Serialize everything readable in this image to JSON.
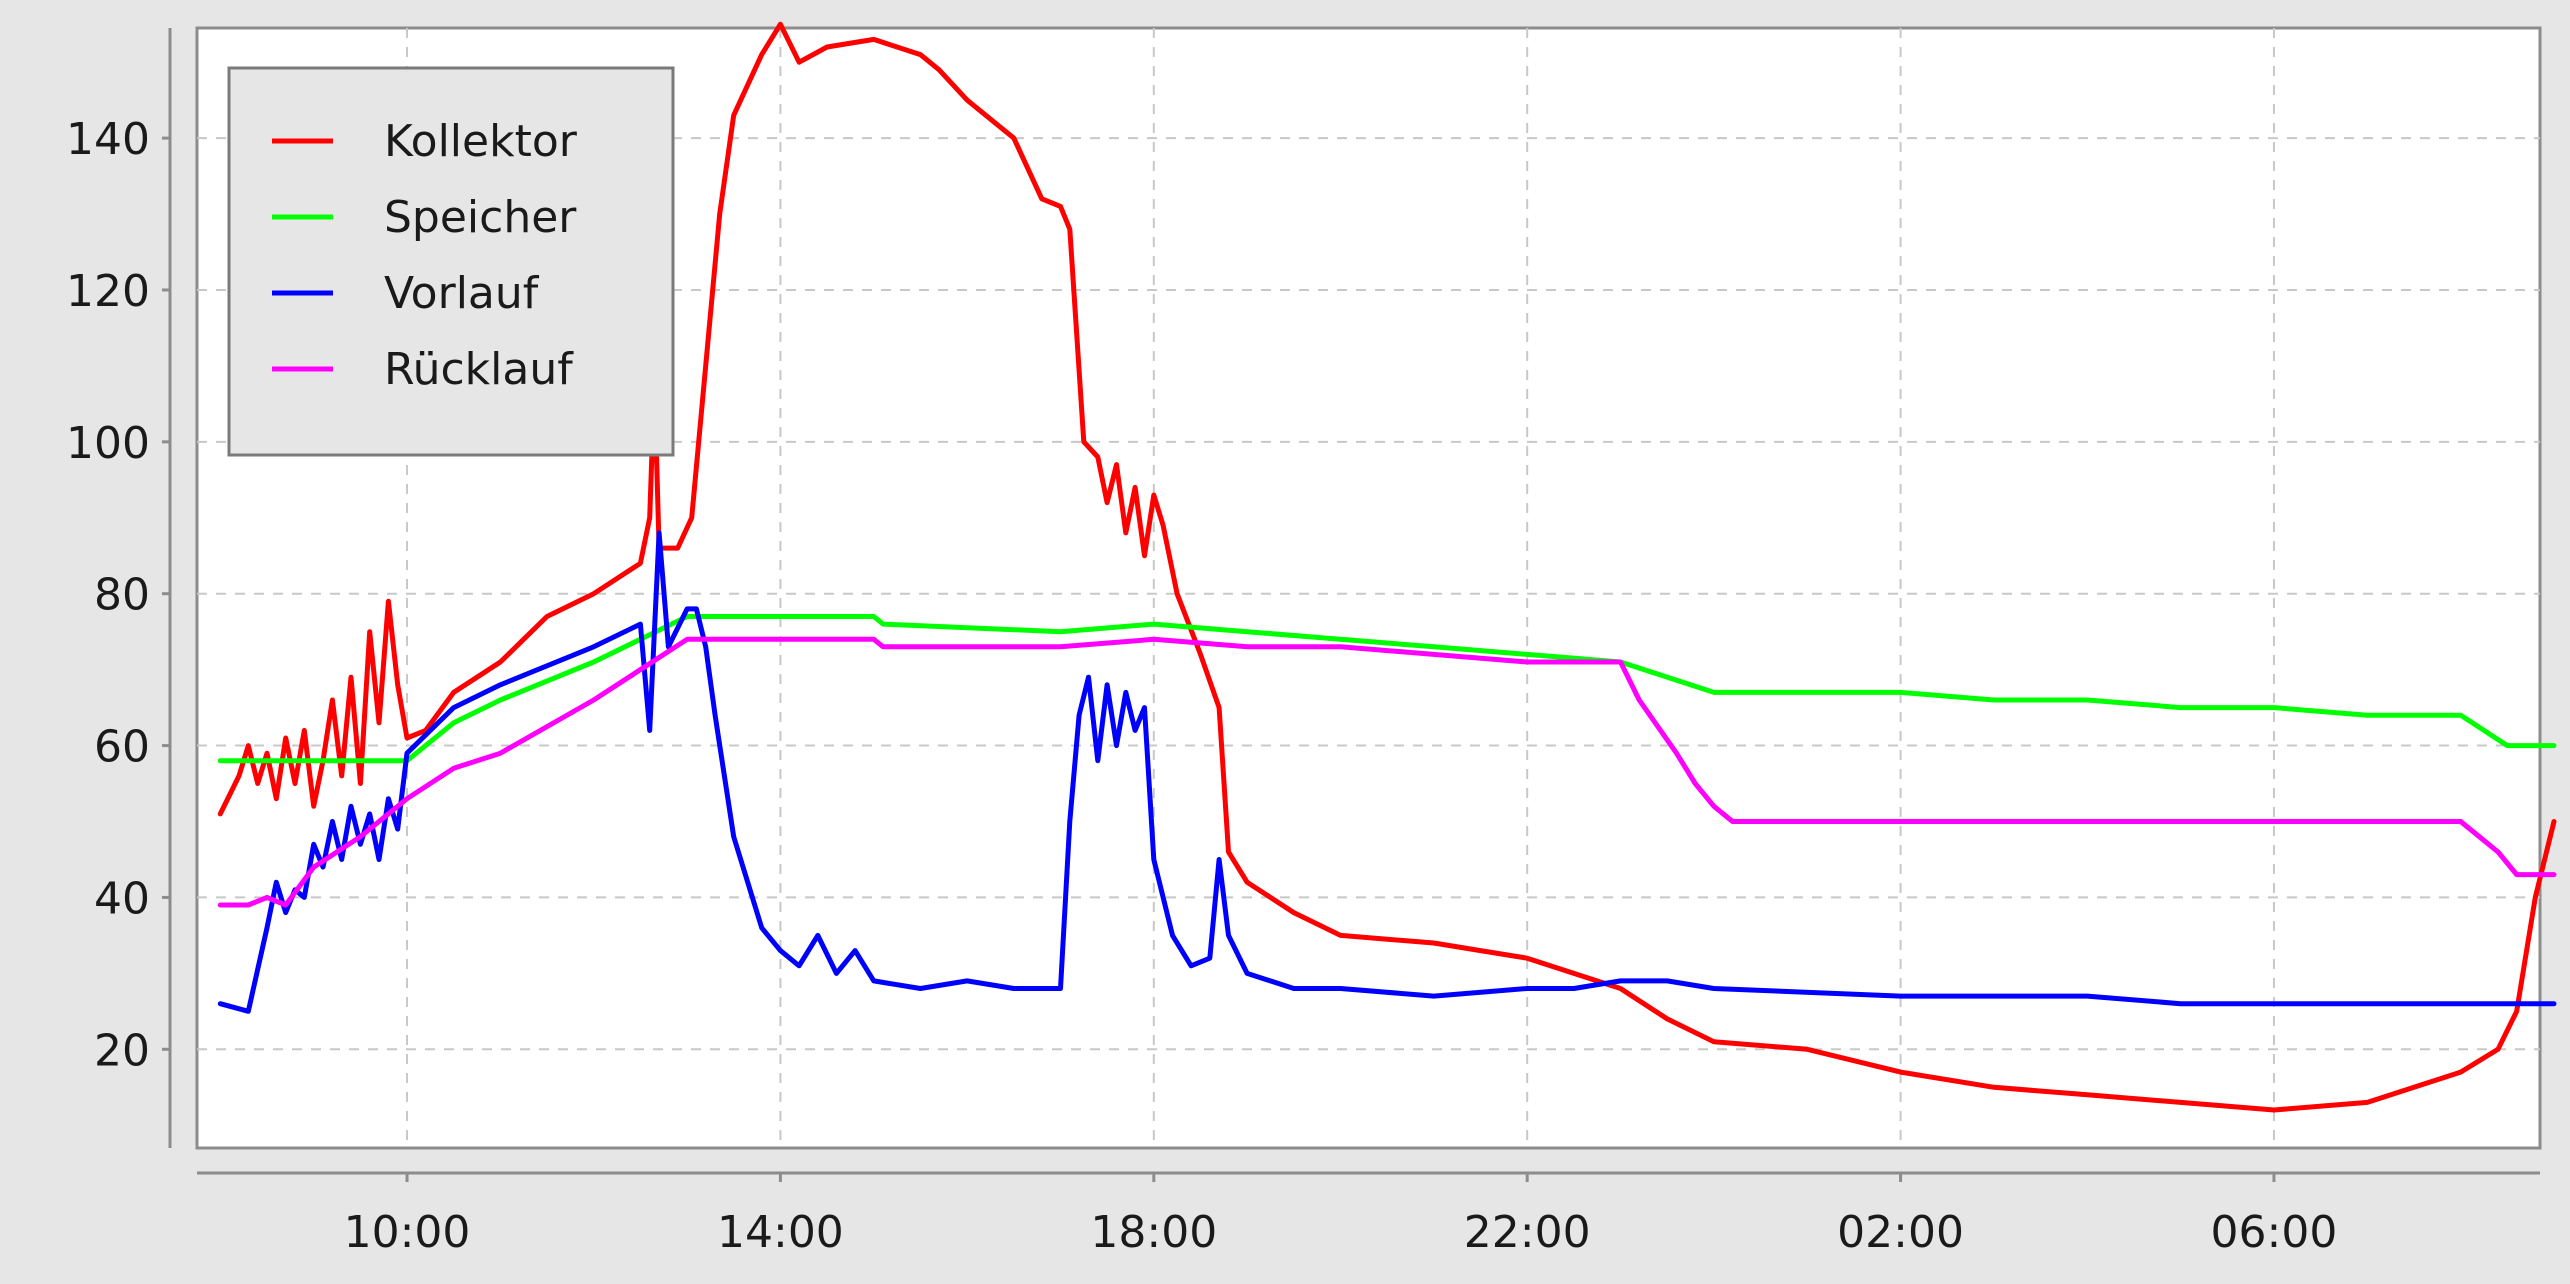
{
  "chart_data": {
    "type": "line",
    "title": "",
    "xlabel": "",
    "ylabel": "",
    "x_unit": "hours since 08:00 (tick labels show clock time)",
    "xlim": [
      -0.25,
      24.85
    ],
    "ylim": [
      7,
      154.5
    ],
    "xtick_labels": [
      "10:00",
      "14:00",
      "18:00",
      "22:00",
      "02:00",
      "06:00"
    ],
    "xtick_values": [
      2,
      6,
      10,
      14,
      18,
      22
    ],
    "ytick_values": [
      20,
      40,
      60,
      80,
      100,
      120,
      140
    ],
    "grid": true,
    "legend_position": "top-left",
    "series": [
      {
        "name": "Kollektor",
        "color": "#ff0000",
        "points": [
          [
            0.0,
            51
          ],
          [
            0.2,
            56
          ],
          [
            0.3,
            60
          ],
          [
            0.4,
            55
          ],
          [
            0.5,
            59
          ],
          [
            0.6,
            53
          ],
          [
            0.7,
            61
          ],
          [
            0.8,
            55
          ],
          [
            0.9,
            62
          ],
          [
            1.0,
            52
          ],
          [
            1.1,
            58
          ],
          [
            1.2,
            66
          ],
          [
            1.3,
            56
          ],
          [
            1.4,
            69
          ],
          [
            1.5,
            55
          ],
          [
            1.6,
            75
          ],
          [
            1.7,
            63
          ],
          [
            1.8,
            79
          ],
          [
            1.9,
            68
          ],
          [
            2.0,
            61
          ],
          [
            2.2,
            62
          ],
          [
            2.5,
            67
          ],
          [
            3.0,
            71
          ],
          [
            3.5,
            77
          ],
          [
            4.0,
            80
          ],
          [
            4.5,
            84
          ],
          [
            4.6,
            90
          ],
          [
            4.65,
            108
          ],
          [
            4.7,
            86
          ],
          [
            4.9,
            86
          ],
          [
            5.05,
            90
          ],
          [
            5.2,
            110
          ],
          [
            5.35,
            130
          ],
          [
            5.5,
            143
          ],
          [
            5.8,
            151
          ],
          [
            6.0,
            155
          ],
          [
            6.2,
            150
          ],
          [
            6.5,
            152
          ],
          [
            7.0,
            153
          ],
          [
            7.5,
            151
          ],
          [
            7.7,
            149
          ],
          [
            8.0,
            145
          ],
          [
            8.5,
            140
          ],
          [
            8.8,
            132
          ],
          [
            9.0,
            131
          ],
          [
            9.1,
            128
          ],
          [
            9.25,
            100
          ],
          [
            9.4,
            98
          ],
          [
            9.5,
            92
          ],
          [
            9.6,
            97
          ],
          [
            9.7,
            88
          ],
          [
            9.8,
            94
          ],
          [
            9.9,
            85
          ],
          [
            10.0,
            93
          ],
          [
            10.1,
            89
          ],
          [
            10.25,
            80
          ],
          [
            10.5,
            72
          ],
          [
            10.7,
            65
          ],
          [
            10.8,
            46
          ],
          [
            11.0,
            42
          ],
          [
            11.5,
            38
          ],
          [
            12.0,
            35
          ],
          [
            13.0,
            34
          ],
          [
            13.5,
            33
          ],
          [
            14.0,
            32
          ],
          [
            14.5,
            30
          ],
          [
            15.0,
            28
          ],
          [
            15.5,
            24
          ],
          [
            16.0,
            21
          ],
          [
            17.0,
            20
          ],
          [
            18.0,
            17
          ],
          [
            19.0,
            15
          ],
          [
            20.0,
            14
          ],
          [
            21.0,
            13
          ],
          [
            22.0,
            12
          ],
          [
            23.0,
            13
          ],
          [
            23.5,
            15
          ],
          [
            24.0,
            17
          ],
          [
            24.4,
            20
          ],
          [
            24.6,
            25
          ],
          [
            24.8,
            40
          ],
          [
            25.0,
            50
          ]
        ]
      },
      {
        "name": "Speicher",
        "color": "#00ff00",
        "points": [
          [
            0.0,
            58
          ],
          [
            2.0,
            58
          ],
          [
            2.5,
            63
          ],
          [
            3.0,
            66
          ],
          [
            4.0,
            71
          ],
          [
            4.5,
            74
          ],
          [
            5.0,
            77
          ],
          [
            7.0,
            77
          ],
          [
            7.1,
            76
          ],
          [
            9.0,
            75
          ],
          [
            10.0,
            76
          ],
          [
            11.0,
            75
          ],
          [
            12.0,
            74
          ],
          [
            13.0,
            73
          ],
          [
            14.0,
            72
          ],
          [
            15.0,
            71
          ],
          [
            16.0,
            67
          ],
          [
            18.0,
            67
          ],
          [
            19.0,
            66
          ],
          [
            20.0,
            66
          ],
          [
            21.0,
            65
          ],
          [
            22.0,
            65
          ],
          [
            23.0,
            64
          ],
          [
            24.0,
            64
          ],
          [
            24.5,
            60
          ],
          [
            25.0,
            60
          ]
        ]
      },
      {
        "name": "Vorlauf",
        "color": "#0000ff",
        "points": [
          [
            0.0,
            26
          ],
          [
            0.3,
            25
          ],
          [
            0.5,
            36
          ],
          [
            0.6,
            42
          ],
          [
            0.7,
            38
          ],
          [
            0.8,
            41
          ],
          [
            0.9,
            40
          ],
          [
            1.0,
            47
          ],
          [
            1.1,
            44
          ],
          [
            1.2,
            50
          ],
          [
            1.3,
            45
          ],
          [
            1.4,
            52
          ],
          [
            1.5,
            47
          ],
          [
            1.6,
            51
          ],
          [
            1.7,
            45
          ],
          [
            1.8,
            53
          ],
          [
            1.9,
            49
          ],
          [
            2.0,
            59
          ],
          [
            2.5,
            65
          ],
          [
            3.0,
            68
          ],
          [
            4.0,
            73
          ],
          [
            4.5,
            76
          ],
          [
            4.6,
            62
          ],
          [
            4.7,
            88
          ],
          [
            4.8,
            73
          ],
          [
            5.0,
            78
          ],
          [
            5.1,
            78
          ],
          [
            5.2,
            73
          ],
          [
            5.3,
            64
          ],
          [
            5.5,
            48
          ],
          [
            5.8,
            36
          ],
          [
            6.0,
            33
          ],
          [
            6.2,
            31
          ],
          [
            6.4,
            35
          ],
          [
            6.6,
            30
          ],
          [
            6.8,
            33
          ],
          [
            7.0,
            29
          ],
          [
            7.5,
            28
          ],
          [
            8.0,
            29
          ],
          [
            8.5,
            28
          ],
          [
            9.0,
            28
          ],
          [
            9.1,
            50
          ],
          [
            9.2,
            64
          ],
          [
            9.3,
            69
          ],
          [
            9.4,
            58
          ],
          [
            9.5,
            68
          ],
          [
            9.6,
            60
          ],
          [
            9.7,
            67
          ],
          [
            9.8,
            62
          ],
          [
            9.9,
            65
          ],
          [
            10.0,
            45
          ],
          [
            10.2,
            35
          ],
          [
            10.4,
            31
          ],
          [
            10.6,
            32
          ],
          [
            10.7,
            45
          ],
          [
            10.8,
            35
          ],
          [
            11.0,
            30
          ],
          [
            11.5,
            28
          ],
          [
            12.0,
            28
          ],
          [
            13.0,
            27
          ],
          [
            14.0,
            28
          ],
          [
            14.5,
            28
          ],
          [
            15.0,
            29
          ],
          [
            15.5,
            29
          ],
          [
            16.0,
            28
          ],
          [
            18.0,
            27
          ],
          [
            20.0,
            27
          ],
          [
            21.0,
            26
          ],
          [
            25.0,
            26
          ]
        ]
      },
      {
        "name": "Rücklauf",
        "color": "#ff00ff",
        "points": [
          [
            0.0,
            39
          ],
          [
            0.3,
            39
          ],
          [
            0.5,
            40
          ],
          [
            0.7,
            39
          ],
          [
            1.0,
            44
          ],
          [
            1.5,
            48
          ],
          [
            2.0,
            53
          ],
          [
            2.5,
            57
          ],
          [
            3.0,
            59
          ],
          [
            4.0,
            66
          ],
          [
            4.5,
            70
          ],
          [
            5.0,
            74
          ],
          [
            7.0,
            74
          ],
          [
            7.1,
            73
          ],
          [
            9.0,
            73
          ],
          [
            10.0,
            74
          ],
          [
            11.0,
            73
          ],
          [
            12.0,
            73
          ],
          [
            13.0,
            72
          ],
          [
            14.0,
            71
          ],
          [
            15.0,
            71
          ],
          [
            15.2,
            66
          ],
          [
            15.6,
            59
          ],
          [
            15.8,
            55
          ],
          [
            16.0,
            52
          ],
          [
            16.2,
            50
          ],
          [
            18.0,
            50
          ],
          [
            22.0,
            50
          ],
          [
            23.0,
            50
          ],
          [
            24.0,
            50
          ],
          [
            24.4,
            46
          ],
          [
            24.6,
            43
          ],
          [
            25.0,
            43
          ]
        ]
      }
    ]
  }
}
